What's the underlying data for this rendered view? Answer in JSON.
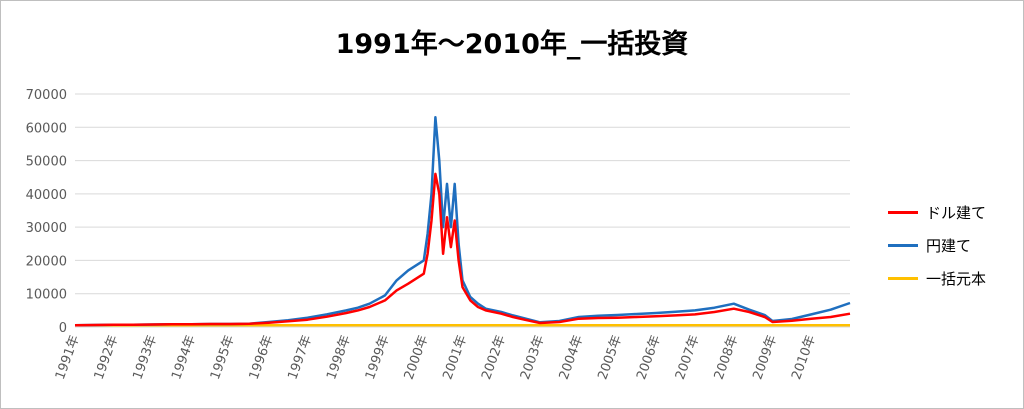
{
  "chart_data": {
    "type": "line",
    "title": "1991年～2010年_一括投資",
    "xlabel": "",
    "ylabel": "",
    "ylim": [
      0,
      70000
    ],
    "yticks": [
      0,
      10000,
      20000,
      30000,
      40000,
      50000,
      60000,
      70000
    ],
    "grid": true,
    "legend_position": "right",
    "categories": [
      "1991年",
      "1992年",
      "1993年",
      "1994年",
      "1995年",
      "1996年",
      "1997年",
      "1998年",
      "1999年",
      "2000年",
      "2001年",
      "2002年",
      "2003年",
      "2004年",
      "2005年",
      "2006年",
      "2007年",
      "2008年",
      "2009年",
      "2010年"
    ],
    "x": [
      1991.0,
      1991.5,
      1992.0,
      1992.5,
      1993.0,
      1993.5,
      1994.0,
      1994.5,
      1995.0,
      1995.5,
      1996.0,
      1996.5,
      1997.0,
      1997.5,
      1998.0,
      1998.3,
      1998.6,
      1999.0,
      1999.3,
      1999.6,
      2000.0,
      2000.1,
      2000.2,
      2000.3,
      2000.4,
      2000.5,
      2000.6,
      2000.7,
      2000.8,
      2000.9,
      2001.0,
      2001.2,
      2001.4,
      2001.6,
      2002.0,
      2002.3,
      2002.6,
      2003.0,
      2003.5,
      2004.0,
      2004.5,
      2005.0,
      2005.5,
      2006.0,
      2006.5,
      2007.0,
      2007.5,
      2008.0,
      2008.4,
      2008.8,
      2009.0,
      2009.5,
      2010.0,
      2010.5,
      2011.0
    ],
    "series": [
      {
        "name": "ドル建て",
        "color": "#ff0000",
        "values": [
          500,
          600,
          700,
          700,
          750,
          800,
          850,
          900,
          900,
          1000,
          1300,
          1700,
          2200,
          3100,
          4200,
          5000,
          6000,
          8000,
          11000,
          13000,
          16000,
          22000,
          32000,
          46000,
          40000,
          22000,
          33000,
          24000,
          32000,
          20000,
          12000,
          8000,
          6000,
          5000,
          4000,
          3000,
          2200,
          1200,
          1500,
          2500,
          2700,
          2800,
          3000,
          3200,
          3500,
          3800,
          4500,
          5500,
          4500,
          3000,
          1500,
          1900,
          2500,
          3000,
          4000
        ]
      },
      {
        "name": "円建て",
        "color": "#1f6fbf",
        "values": [
          500,
          600,
          700,
          700,
          750,
          800,
          850,
          900,
          900,
          1000,
          1500,
          2000,
          2800,
          3800,
          5000,
          5800,
          7000,
          9500,
          14000,
          17000,
          20000,
          28000,
          40000,
          63000,
          50000,
          30000,
          43000,
          30000,
          43000,
          25000,
          14000,
          9000,
          7000,
          5500,
          4500,
          3500,
          2600,
          1400,
          1800,
          3000,
          3400,
          3600,
          3900,
          4200,
          4600,
          5000,
          5800,
          7000,
          5200,
          3600,
          1800,
          2400,
          3800,
          5200,
          7200
        ]
      },
      {
        "name": "一括元本",
        "color": "#ffc000",
        "values": [
          500,
          500,
          500,
          500,
          500,
          500,
          500,
          500,
          500,
          500,
          500,
          500,
          500,
          500,
          500,
          500,
          500,
          500,
          500,
          500,
          500,
          500,
          500,
          500,
          500,
          500,
          500,
          500,
          500,
          500,
          500,
          500,
          500,
          500,
          500,
          500,
          500,
          500,
          500,
          500,
          500,
          500,
          500,
          500,
          500,
          500,
          500,
          500,
          500,
          500,
          500,
          500,
          500,
          500,
          500
        ]
      }
    ]
  }
}
